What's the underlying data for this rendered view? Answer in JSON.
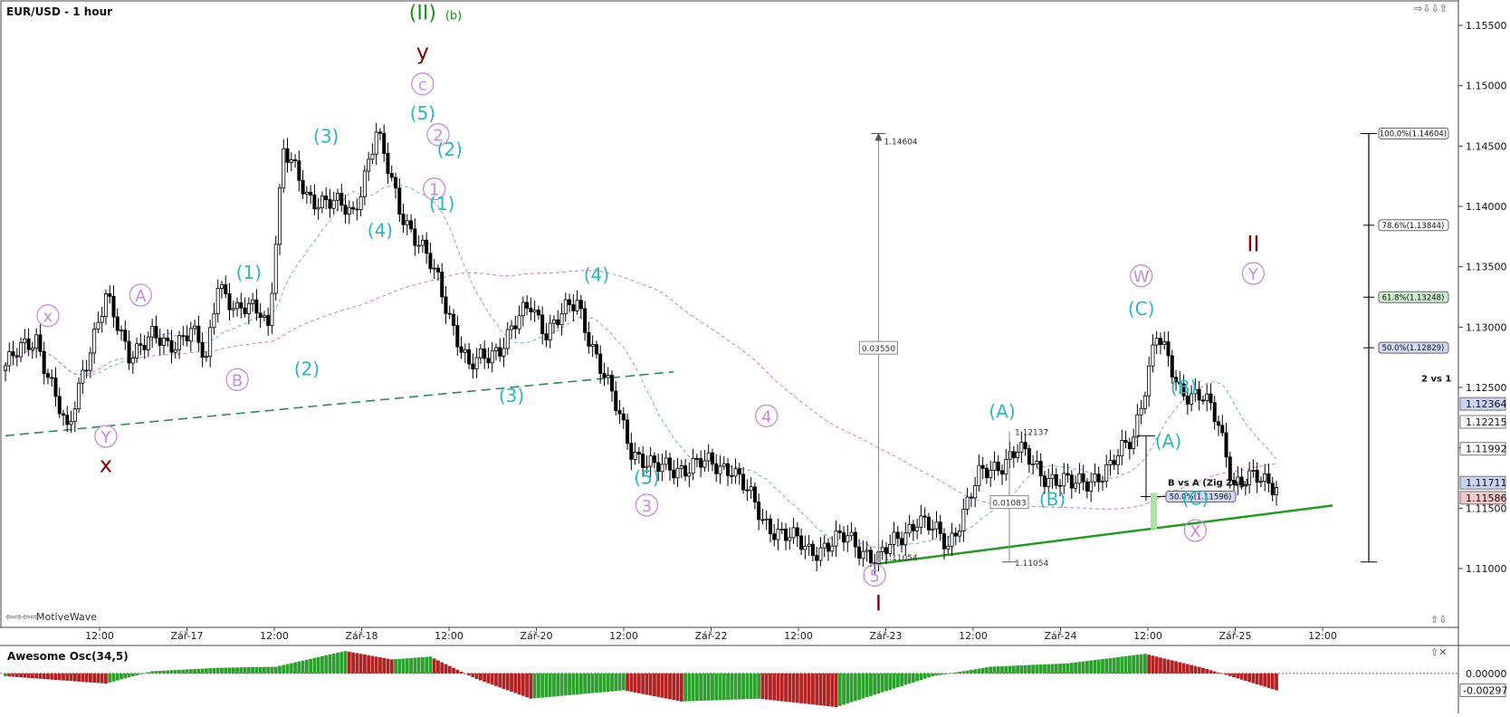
{
  "title": "EUR/USD - 1 hour",
  "watermark": "MotiveWave",
  "panel2_title": "Awesome Osc(34,5)",
  "colors": {
    "bull": "#ffffff",
    "bear": "#000000",
    "bull_bar": "#2ca02c",
    "bear_bar": "#b22222",
    "cyan": "#29b6c6",
    "violet": "#c58ae8",
    "maroon": "#8b0000",
    "green": "#2e8b57"
  },
  "price_axis": {
    "ticks": [
      "1.15500",
      "1.15000",
      "1.14500",
      "1.14000",
      "1.13500",
      "1.13000",
      "1.12500",
      "1.12000",
      "1.11500",
      "1.11000"
    ],
    "tick_values": [
      1.155,
      1.15,
      1.145,
      1.14,
      1.135,
      1.13,
      1.125,
      1.12,
      1.115,
      1.11
    ],
    "markers": [
      {
        "text": "1.12364",
        "value": 1.12364,
        "style": "blue"
      },
      {
        "text": "1.12215",
        "value": 1.12215,
        "style": "white"
      },
      {
        "text": "1.11992",
        "value": 1.11992,
        "style": "white"
      },
      {
        "text": "1.11711",
        "value": 1.11711,
        "style": "blue"
      },
      {
        "text": "1.11586",
        "value": 1.11586,
        "style": "red"
      }
    ]
  },
  "osc_axis": {
    "ticks": [
      "0.00000"
    ],
    "markers": [
      {
        "text": "-0.00297"
      }
    ]
  },
  "time_axis": [
    "12:00",
    "Zář-17",
    "12:00",
    "Zář-18",
    "12:00",
    "Zář-20",
    "12:00",
    "Zář-22",
    "12:00",
    "Zář-23",
    "12:00",
    "Zář-24",
    "12:00",
    "Zář-25",
    "12:00"
  ],
  "chart_data": {
    "type": "candlestick",
    "symbol": "EUR/USD",
    "timeframe": "1 hour",
    "y_range": [
      1.1055,
      1.1565
    ],
    "pivots": [
      {
        "bar": 0,
        "price": 1.1268
      },
      {
        "bar": 8,
        "price": 1.1292
      },
      {
        "bar": 16,
        "price": 1.121
      },
      {
        "bar": 20,
        "price": 1.1265
      },
      {
        "bar": 26,
        "price": 1.1322
      },
      {
        "bar": 32,
        "price": 1.128
      },
      {
        "bar": 38,
        "price": 1.129
      },
      {
        "bar": 42,
        "price": 1.1285
      },
      {
        "bar": 48,
        "price": 1.1298
      },
      {
        "bar": 52,
        "price": 1.127
      },
      {
        "bar": 55,
        "price": 1.134
      },
      {
        "bar": 60,
        "price": 1.1312
      },
      {
        "bar": 66,
        "price": 1.1315
      },
      {
        "bar": 68,
        "price": 1.1302
      },
      {
        "bar": 72,
        "price": 1.1445
      },
      {
        "bar": 78,
        "price": 1.141
      },
      {
        "bar": 90,
        "price": 1.1395
      },
      {
        "bar": 96,
        "price": 1.146
      },
      {
        "bar": 102,
        "price": 1.14
      },
      {
        "bar": 112,
        "price": 1.1338
      },
      {
        "bar": 120,
        "price": 1.1265
      },
      {
        "bar": 128,
        "price": 1.1285
      },
      {
        "bar": 136,
        "price": 1.1318
      },
      {
        "bar": 140,
        "price": 1.1298
      },
      {
        "bar": 148,
        "price": 1.132
      },
      {
        "bar": 156,
        "price": 1.125
      },
      {
        "bar": 162,
        "price": 1.12
      },
      {
        "bar": 168,
        "price": 1.1182
      },
      {
        "bar": 180,
        "price": 1.1186
      },
      {
        "bar": 188,
        "price": 1.1185
      },
      {
        "bar": 196,
        "price": 1.114
      },
      {
        "bar": 208,
        "price": 1.1115
      },
      {
        "bar": 218,
        "price": 1.1125
      },
      {
        "bar": 226,
        "price": 1.1107
      },
      {
        "bar": 236,
        "price": 1.1142
      },
      {
        "bar": 244,
        "price": 1.112
      },
      {
        "bar": 252,
        "price": 1.1175
      },
      {
        "bar": 262,
        "price": 1.1198
      },
      {
        "bar": 268,
        "price": 1.118
      },
      {
        "bar": 276,
        "price": 1.1168
      },
      {
        "bar": 286,
        "price": 1.1182
      },
      {
        "bar": 292,
        "price": 1.1212
      },
      {
        "bar": 298,
        "price": 1.1292
      },
      {
        "bar": 304,
        "price": 1.125
      },
      {
        "bar": 310,
        "price": 1.124
      },
      {
        "bar": 314,
        "price": 1.122
      },
      {
        "bar": 318,
        "price": 1.1172
      },
      {
        "bar": 324,
        "price": 1.1173
      },
      {
        "bar": 329,
        "price": 1.1171
      }
    ],
    "wave_labels": [
      {
        "text": "(II)",
        "bar": 108,
        "price": 1.1555,
        "color": "green",
        "size": 22
      },
      {
        "text": "(b)",
        "bar": 116,
        "price": 1.1555,
        "color": "green",
        "size": 13
      },
      {
        "text": "y",
        "bar": 108,
        "price": 1.1522,
        "color": "maroon",
        "size": 24
      },
      {
        "text": "c",
        "bar": 108,
        "price": 1.1497,
        "color": "violet",
        "circle": true
      },
      {
        "text": "(5)",
        "bar": 108,
        "price": 1.1472,
        "color": "cyan"
      },
      {
        "text": "(3)",
        "bar": 83,
        "price": 1.1453,
        "color": "cyan"
      },
      {
        "text": "2",
        "bar": 112,
        "price": 1.1455,
        "color": "violet",
        "circle": true
      },
      {
        "text": "(2)",
        "bar": 115,
        "price": 1.1442,
        "color": "cyan"
      },
      {
        "text": "1",
        "bar": 111,
        "price": 1.141,
        "color": "violet",
        "circle": true
      },
      {
        "text": "(1)",
        "bar": 113,
        "price": 1.1397,
        "color": "cyan"
      },
      {
        "text": "(4)",
        "bar": 97,
        "price": 1.1375,
        "color": "cyan"
      },
      {
        "text": "(1)",
        "bar": 63,
        "price": 1.134,
        "color": "cyan"
      },
      {
        "text": "A",
        "bar": 35,
        "price": 1.1322,
        "color": "violet",
        "circle": true
      },
      {
        "text": "x",
        "bar": 11,
        "price": 1.1305,
        "color": "violet",
        "circle": true
      },
      {
        "text": "(2)",
        "bar": 78,
        "price": 1.126,
        "color": "cyan"
      },
      {
        "text": "B",
        "bar": 60,
        "price": 1.1252,
        "color": "violet",
        "circle": true
      },
      {
        "text": "Y",
        "bar": 26,
        "price": 1.1205,
        "color": "violet",
        "circle": true
      },
      {
        "text": "x",
        "bar": 26,
        "price": 1.118,
        "color": "maroon",
        "size": 24
      },
      {
        "text": "(4)",
        "bar": 153,
        "price": 1.1338,
        "color": "cyan"
      },
      {
        "text": "(3)",
        "bar": 131,
        "price": 1.1238,
        "color": "cyan"
      },
      {
        "text": "(5)",
        "bar": 166,
        "price": 1.117,
        "color": "cyan"
      },
      {
        "text": "3",
        "bar": 166,
        "price": 1.1148,
        "color": "violet",
        "circle": true
      },
      {
        "text": "4",
        "bar": 197,
        "price": 1.1222,
        "color": "violet",
        "circle": true
      },
      {
        "text": "5",
        "bar": 225,
        "price": 1.109,
        "color": "violet",
        "circle": true
      },
      {
        "text": "I",
        "bar": 226,
        "price": 1.1065,
        "color": "maroon",
        "size": 24
      },
      {
        "text": "(A)",
        "bar": 258,
        "price": 1.1225,
        "color": "cyan"
      },
      {
        "text": "(B)",
        "bar": 271,
        "price": 1.1152,
        "color": "cyan"
      },
      {
        "text": "W",
        "bar": 294,
        "price": 1.1338,
        "color": "violet",
        "circle": true
      },
      {
        "text": "(C)",
        "bar": 294,
        "price": 1.131,
        "color": "cyan"
      },
      {
        "text": "(B)",
        "bar": 305,
        "price": 1.1245,
        "color": "cyan"
      },
      {
        "text": "(A)",
        "bar": 301,
        "price": 1.12,
        "color": "cyan"
      },
      {
        "text": "(C)",
        "bar": 308,
        "price": 1.1153,
        "color": "cyan"
      },
      {
        "text": "X",
        "bar": 308,
        "price": 1.1127,
        "color": "violet",
        "circle": true
      },
      {
        "text": "II",
        "bar": 323,
        "price": 1.1363,
        "color": "maroon",
        "size": 24
      },
      {
        "text": "Y",
        "bar": 323,
        "price": 1.134,
        "color": "violet",
        "circle": true
      }
    ],
    "measure_tool": {
      "top": 1.14604,
      "bottom": 1.11054,
      "delta": "0.03550",
      "top_label": "1.14604",
      "bottom_label": "1.11054",
      "bar": 226
    },
    "measure_tool_2": {
      "top": 1.12137,
      "bottom": 1.11054,
      "delta": "0.01083",
      "top_label": "1.12137",
      "bottom_label": "1.11054",
      "bar": 258
    },
    "fib_levels": [
      {
        "label": "100.0%(1.14604)",
        "value": 1.14604,
        "color": "#ffffff"
      },
      {
        "label": "78.6%(1.13844)",
        "value": 1.13844,
        "color": "#ffffff"
      },
      {
        "label": "61.8%(1.13248)",
        "value": 1.13248,
        "color": "#cdeccd"
      },
      {
        "label": "50.0%(1.12829)",
        "value": 1.12829,
        "color": "#cfd8f5"
      }
    ],
    "fib_note": "2 vs 1",
    "bvsa_label": "B vs A (Zig Zag)",
    "bvsa_level": {
      "label": "50.0%(1.11596)",
      "value": 1.11596
    },
    "trendlines": [
      {
        "from": [
          0,
          1.121
        ],
        "to": [
          173,
          1.1263
        ],
        "style": "dashed",
        "color": "green"
      },
      {
        "from": [
          226,
          1.1104
        ],
        "to": [
          333,
          1.115
        ],
        "style": "solid",
        "color": "green"
      }
    ],
    "oscillator": {
      "name": "Awesome Osc(34,5)",
      "range": [
        -0.0068,
        0.0045
      ],
      "pivots": [
        {
          "bar": 0,
          "value": -0.0005
        },
        {
          "bar": 10,
          "value": -0.001
        },
        {
          "bar": 26,
          "value": -0.0018
        },
        {
          "bar": 38,
          "value": 0.0004
        },
        {
          "bar": 55,
          "value": 0.001
        },
        {
          "bar": 70,
          "value": 0.0012
        },
        {
          "bar": 88,
          "value": 0.004
        },
        {
          "bar": 100,
          "value": 0.0025
        },
        {
          "bar": 110,
          "value": 0.003
        },
        {
          "bar": 122,
          "value": -0.001
        },
        {
          "bar": 136,
          "value": -0.0045
        },
        {
          "bar": 160,
          "value": -0.003
        },
        {
          "bar": 175,
          "value": -0.005
        },
        {
          "bar": 195,
          "value": -0.0045
        },
        {
          "bar": 215,
          "value": -0.006
        },
        {
          "bar": 240,
          "value": -0.0005
        },
        {
          "bar": 255,
          "value": 0.0012
        },
        {
          "bar": 275,
          "value": 0.0018
        },
        {
          "bar": 295,
          "value": 0.0035
        },
        {
          "bar": 310,
          "value": 0.001
        },
        {
          "bar": 329,
          "value": -0.003
        }
      ]
    }
  }
}
